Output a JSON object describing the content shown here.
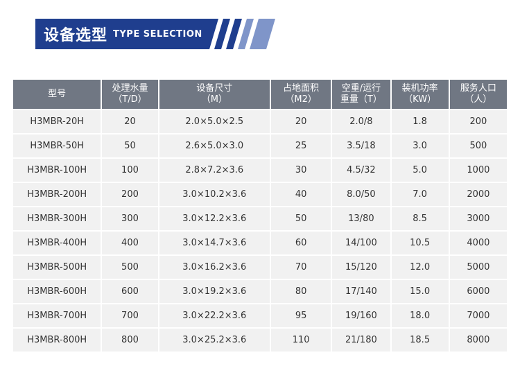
{
  "header": {
    "title_cn": "设备选型",
    "title_en": "TYPE SELECTION",
    "colors": {
      "banner": "#1f3e8e",
      "stripe_dark": "#1f3e8e",
      "stripe_light": "#7f95c9"
    }
  },
  "table": {
    "headers": [
      {
        "line1": "型号",
        "line2": ""
      },
      {
        "line1": "处理水量",
        "line2": "（T/D）"
      },
      {
        "line1": "设备尺寸",
        "line2": "（M）"
      },
      {
        "line1": "占地面积",
        "line2": "（M2）"
      },
      {
        "line1": "空重/运行",
        "line2": "重量（T）"
      },
      {
        "line1": "装机功率",
        "line2": "（KW）"
      },
      {
        "line1": "服务人口",
        "line2": "（人）"
      }
    ],
    "rows": [
      [
        "H3MBR-20H",
        "20",
        "2.0×5.0×2.5",
        "20",
        "2.0/8",
        "1.8",
        "200"
      ],
      [
        "H3MBR-50H",
        "50",
        "2.6×5.0×3.0",
        "25",
        "3.5/18",
        "3.0",
        "500"
      ],
      [
        "H3MBR-100H",
        "100",
        "2.8×7.2×3.6",
        "30",
        "4.5/32",
        "5.0",
        "1000"
      ],
      [
        "H3MBR-200H",
        "200",
        "3.0×10.2×3.6",
        "40",
        "8.0/50",
        "7.0",
        "2000"
      ],
      [
        "H3MBR-300H",
        "300",
        "3.0×12.2×3.6",
        "50",
        "13/80",
        "8.5",
        "3000"
      ],
      [
        "H3MBR-400H",
        "400",
        "3.0×14.7×3.6",
        "60",
        "14/100",
        "10.5",
        "4000"
      ],
      [
        "H3MBR-500H",
        "500",
        "3.0×16.2×3.6",
        "70",
        "15/120",
        "12.0",
        "5000"
      ],
      [
        "H3MBR-600H",
        "600",
        "3.0×19.2×3.6",
        "80",
        "17/140",
        "15.0",
        "6000"
      ],
      [
        "H3MBR-700H",
        "700",
        "3.0×22.2×3.6",
        "95",
        "19/160",
        "18.0",
        "7000"
      ],
      [
        "H3MBR-800H",
        "800",
        "3.0×25.2×3.6",
        "110",
        "21/180",
        "18.5",
        "8000"
      ]
    ]
  }
}
